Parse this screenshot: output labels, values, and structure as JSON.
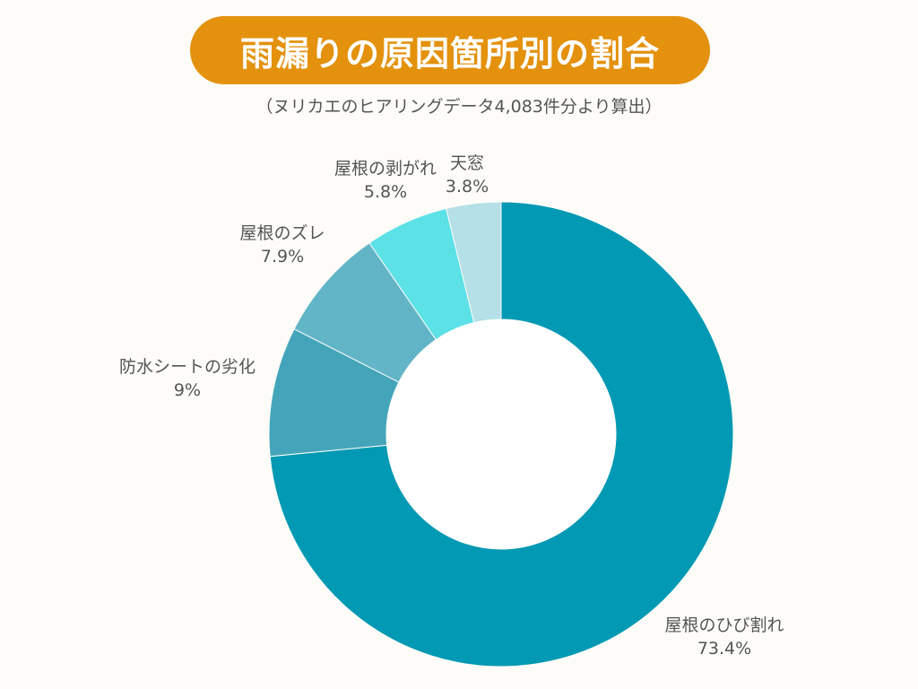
{
  "title": "雨漏りの原因箇所別の割合",
  "subtitle": "（ヌリカエのヒアリングデータ4,083件分より算出）",
  "colors": {
    "title_bg": "#e4910d",
    "background": "#fdfcf8",
    "label_text": "#555555"
  },
  "chart_data": {
    "type": "pie",
    "variant": "donut",
    "start": "12 o'clock, clockwise",
    "legend": "none (labels placed beside slices)",
    "slices": [
      {
        "label": "屋根のひび割れ",
        "value": 73.4,
        "value_label": "73.4%",
        "color": "#0199b3"
      },
      {
        "label": "防水シートの劣化",
        "value": 9,
        "value_label": "9%",
        "color": "#44a5ba"
      },
      {
        "label": "屋根のズレ",
        "value": 7.9,
        "value_label": "7.9%",
        "color": "#62b5c6"
      },
      {
        "label": "屋根の剥がれ",
        "value": 5.8,
        "value_label": "5.8%",
        "color": "#5ce1e6"
      },
      {
        "label": "天窓",
        "value": 3.8,
        "value_label": "3.8%",
        "color": "#b5e0e8"
      }
    ]
  }
}
